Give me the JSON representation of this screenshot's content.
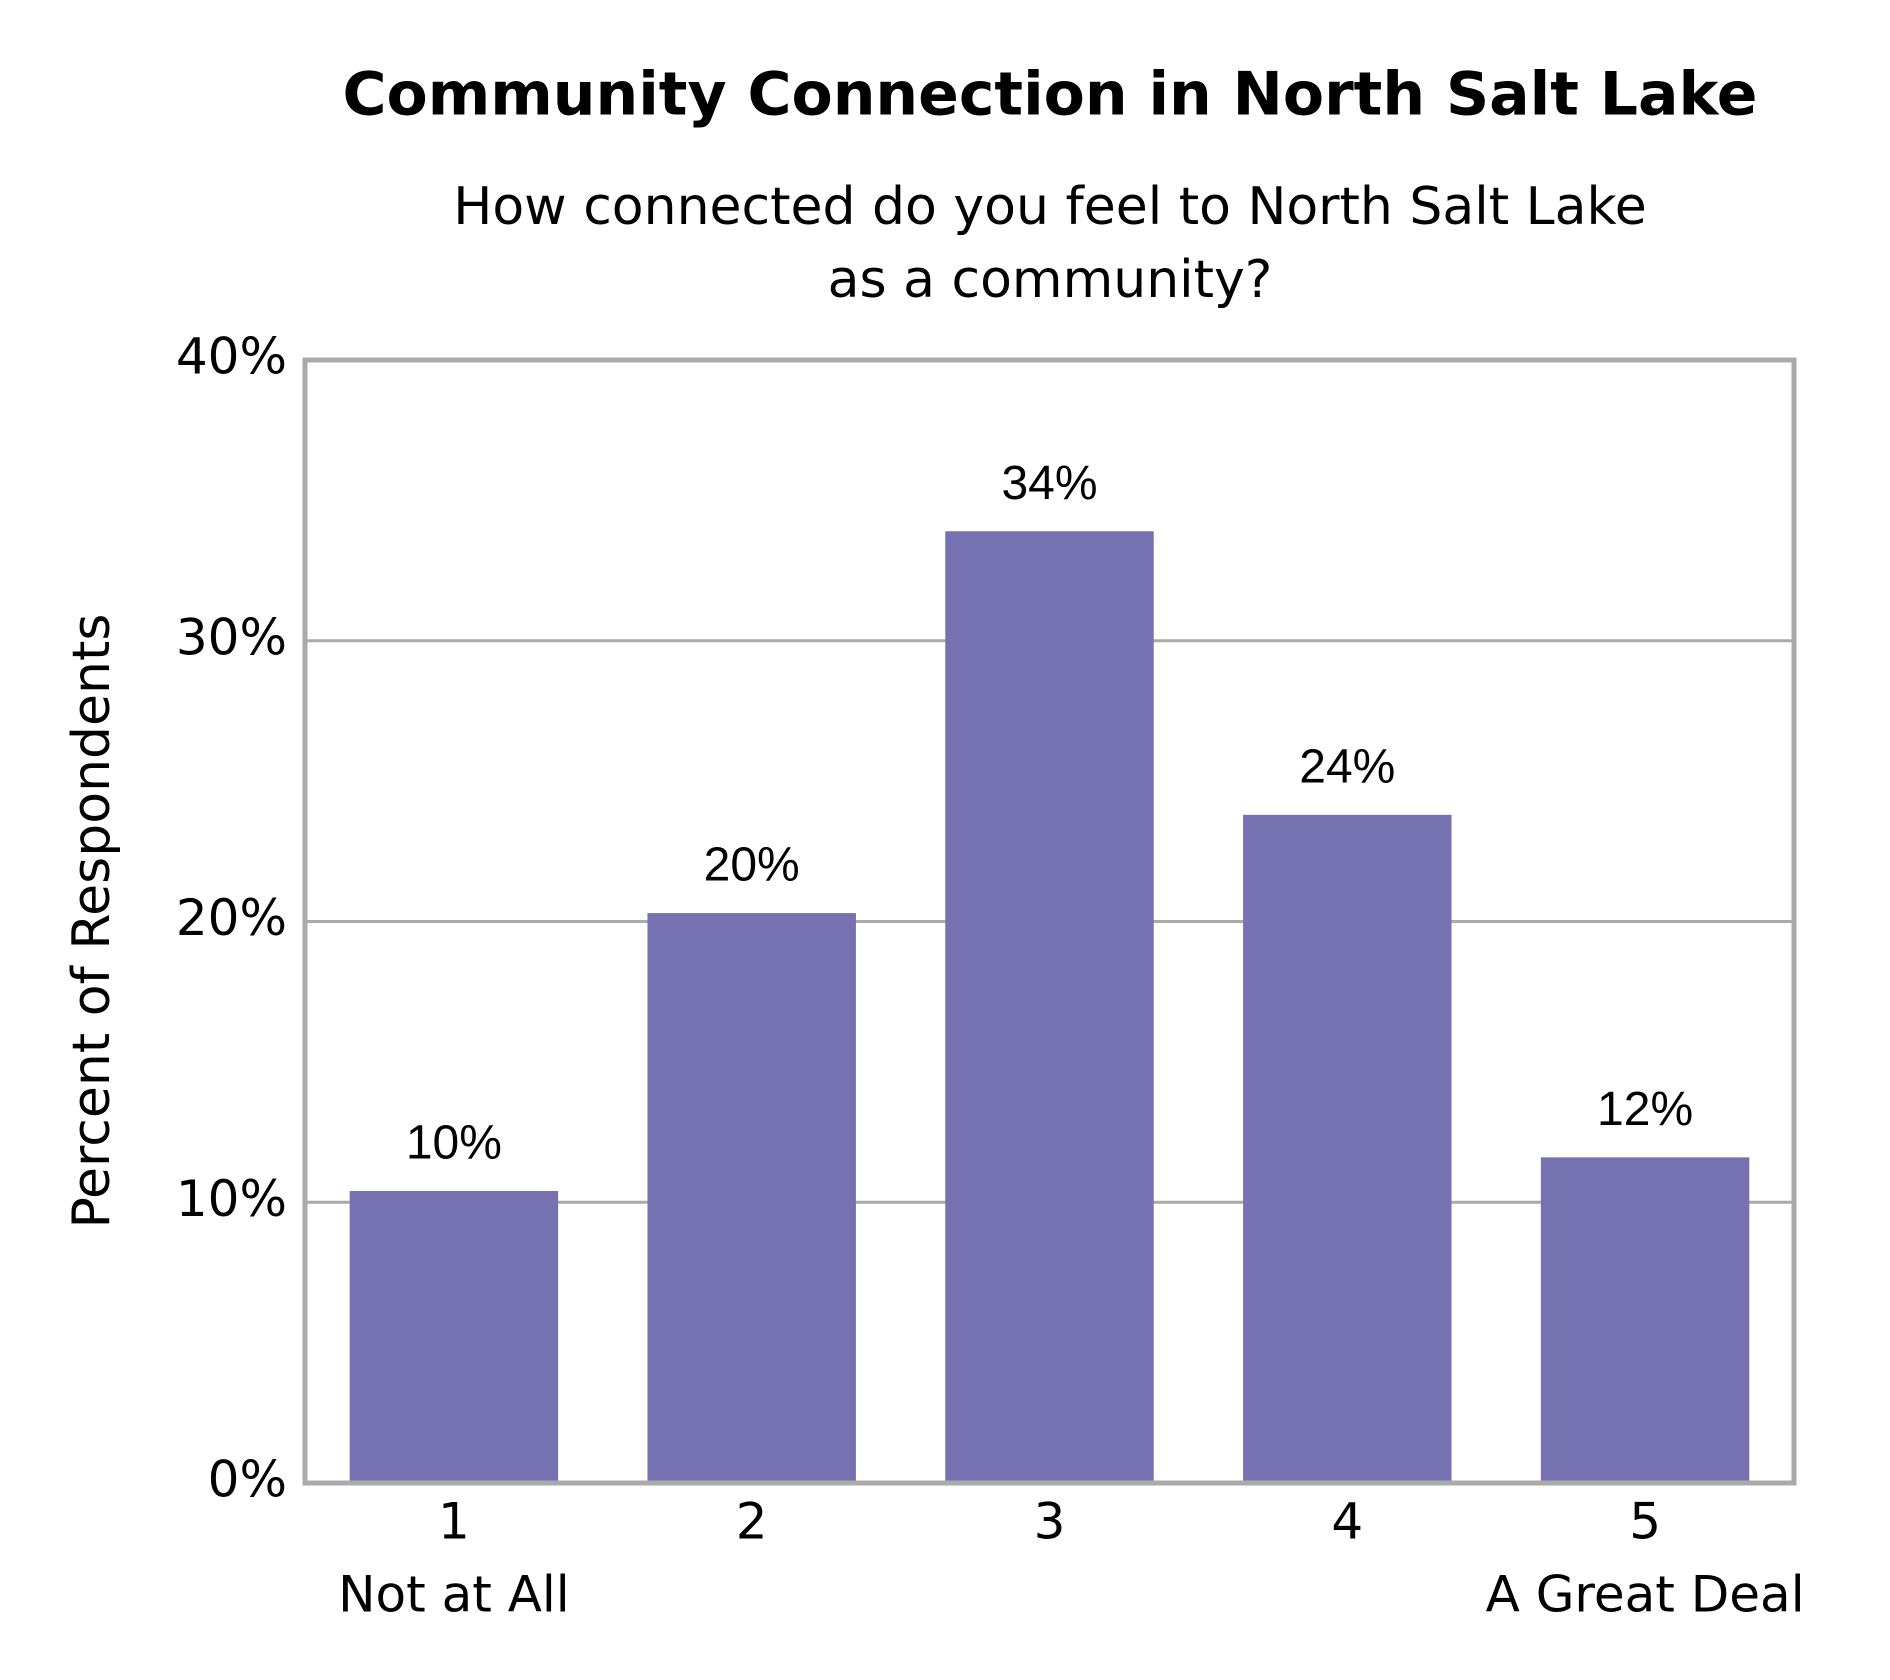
{
  "chart_data": {
    "type": "bar",
    "title": "Community Connection in North Salt Lake",
    "subtitle": [
      "How connected do you feel to North Salt Lake",
      "as a community?"
    ],
    "y_label": "Percent of Respondents",
    "categories": [
      "1",
      "2",
      "3",
      "4",
      "5"
    ],
    "category_sublabels": [
      "Not at All",
      null,
      null,
      null,
      "A Great Deal"
    ],
    "values": [
      10.4,
      20.3,
      33.9,
      23.8,
      11.6
    ],
    "value_labels": [
      "10%",
      "20%",
      "34%",
      "24%",
      "12%"
    ],
    "color": "#7672b1",
    "ylim": [
      0,
      40
    ],
    "yticks": [
      {
        "value": 0,
        "label": "0%"
      },
      {
        "value": 10,
        "label": "10%"
      },
      {
        "value": 20,
        "label": "20%"
      },
      {
        "value": 30,
        "label": "30%"
      },
      {
        "value": 40,
        "label": "40%"
      }
    ],
    "grid": true
  }
}
